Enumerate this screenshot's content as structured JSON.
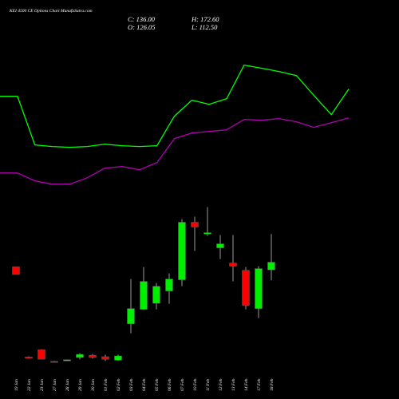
{
  "chart_data": {
    "type": "candlestick",
    "title": "KEI 4500 CE Options Chart MunafaSutra.com",
    "summary": [
      "C: 136.00",
      "O: 126.05",
      "H: 172.60",
      "L: 112.50"
    ],
    "categories": [
      "19 Jan",
      "22 Jan",
      "23 Jan",
      "27 Jan",
      "28 Jan",
      "29 Jan",
      "30 Jan",
      "01 Feb",
      "02 Feb",
      "03 Feb",
      "04 Feb",
      "05 Feb",
      "06 Feb",
      "07 Feb",
      "10 Feb",
      "11 Feb",
      "12 Feb",
      "13 Feb",
      "14 Feb",
      "17 Feb",
      "18 Feb"
    ],
    "open": [
      130,
      13,
      22.6,
      7.5,
      8.5,
      12.4,
      15.5,
      13.5,
      9,
      56.2,
      74.9,
      82.7,
      98.7,
      113.2,
      187.8,
      172.6,
      154.6,
      135,
      125.6,
      75.9,
      126.05
    ],
    "high": [
      130,
      14,
      23,
      8,
      10,
      18,
      17,
      16,
      16,
      114.2,
      129.8,
      109,
      121.5,
      191.9,
      195,
      207.5,
      171.2,
      171.2,
      129.8,
      130.8,
      172.6
    ],
    "low": [
      120,
      11,
      10,
      6.5,
      8,
      10,
      11,
      8,
      8,
      43.8,
      74,
      74.9,
      82,
      104.9,
      150.5,
      170.2,
      140.1,
      111.1,
      74.9,
      63.5,
      112.5
    ],
    "close": [
      120,
      12,
      10.2,
      7,
      9.5,
      16.5,
      12.4,
      10,
      14.5,
      75.9,
      111.1,
      104.8,
      114.2,
      187.8,
      181.6,
      174.3,
      159.8,
      130.8,
      80,
      127.7,
      136
    ],
    "up_color": "#00ee00",
    "down_color": "#ff0000",
    "lines": [
      {
        "color": "#00ff00",
        "values": [
          351.2,
          351.2,
          288,
          286,
          285,
          286,
          289,
          287,
          286,
          287,
          325.3,
          346,
          340.8,
          348.1,
          391.6,
          387.5,
          383.3,
          378,
          352.2,
          327.4,
          360.5
        ]
      },
      {
        "color": "#b000b0",
        "values": [
          251.7,
          251.7,
          241.4,
          237.2,
          237.2,
          245.5,
          258,
          260,
          255.9,
          265.2,
          296.3,
          303.5,
          305.6,
          307.7,
          321.2,
          320.1,
          322.2,
          318.1,
          310.8,
          317,
          323.2
        ]
      }
    ],
    "ylim": [
      0,
      476
    ]
  }
}
